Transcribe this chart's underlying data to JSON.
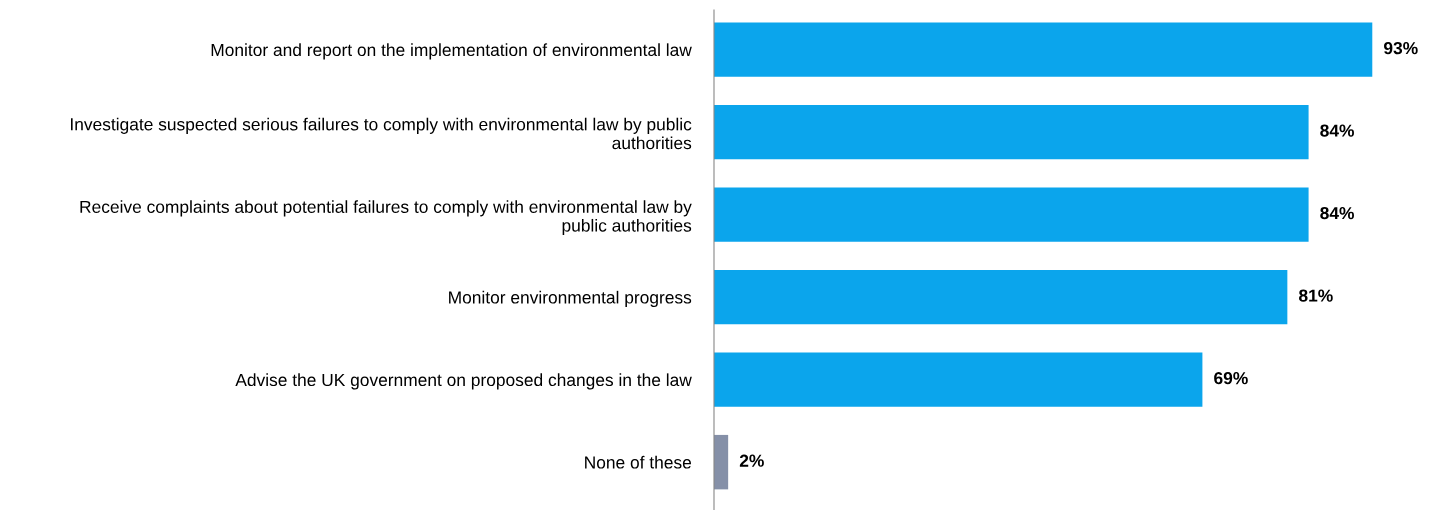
{
  "chart_data": {
    "type": "bar",
    "orientation": "horizontal",
    "categories": [
      "Monitor and report on the implementation of environmental law",
      "Investigate suspected serious failures to comply with environmental law by public\nauthorities",
      "Receive complaints about potential failures to comply with environmental law by\npublic authorities",
      "Monitor environmental progress",
      "Advise the UK government on proposed changes in the law",
      "None of these"
    ],
    "values": [
      93,
      84,
      84,
      81,
      69,
      2
    ],
    "colors": [
      "#0ba5ec",
      "#0ba5ec",
      "#0ba5ec",
      "#0ba5ec",
      "#0ba5ec",
      "#8590a8"
    ],
    "value_labels": [
      "93%",
      "84%",
      "84%",
      "81%",
      "69%",
      "2%"
    ],
    "tick_labels": "y",
    "grid": false,
    "legend": false
  }
}
